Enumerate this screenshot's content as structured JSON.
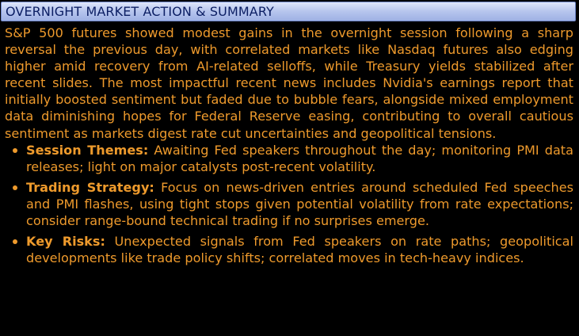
{
  "panel": {
    "title": "OVERNIGHT MARKET ACTION & SUMMARY"
  },
  "summary": {
    "intro": "S&P 500 futures showed modest gains in the overnight session following a sharp reversal the previous day, with correlated markets like Nasdaq futures also edging higher amid recovery from AI-related selloffs, while Treasury yields stabilized after recent slides. The most impactful recent news includes Nvidia's earnings report that initially boosted sentiment but faded due to bubble fears, alongside mixed employment data diminishing hopes for Federal Reserve easing, contributing to overall cautious sentiment as markets digest rate cut uncertainties and geopolitical tensions.",
    "bullets": [
      {
        "label": "Session Themes:",
        "text": "Awaiting Fed speakers throughout the day; monitoring PMI data releases; light on major catalysts post-recent volatility."
      },
      {
        "label": "Trading Strategy:",
        "text": "Focus on news-driven entries around scheduled Fed speeches and PMI flashes, using tight stops given potential volatility from rate expectations; consider range-bound technical trading if no surprises emerge."
      },
      {
        "label": "Key Risks:",
        "text": "Unexpected signals from Fed speakers on rate paths; geopolitical developments like trade policy shifts; correlated moves in tech-heavy indices."
      }
    ]
  },
  "colors": {
    "background": "#000000",
    "title_bar": "#b9c7ee",
    "title_text": "#0b1e63",
    "body_text": "#ee9a2c"
  }
}
